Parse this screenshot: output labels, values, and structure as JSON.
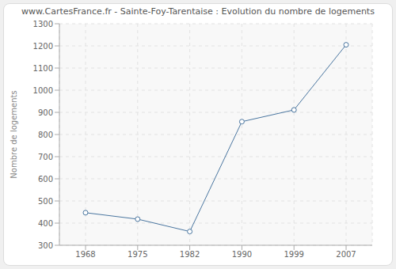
{
  "chart_data": {
    "type": "line",
    "title": "www.CartesFrance.fr - Sainte-Foy-Tarentaise : Evolution du nombre de logements",
    "y_label": "Nombre de logements",
    "categories": [
      "1968",
      "1975",
      "1982",
      "1990",
      "1999",
      "2007"
    ],
    "values": [
      447,
      418,
      362,
      858,
      911,
      1205
    ],
    "color": "#4a76a0",
    "marker": "circle",
    "ylim": [
      300,
      1300
    ],
    "yticks": [
      300,
      400,
      500,
      600,
      700,
      800,
      900,
      1000,
      1100,
      1200,
      1300
    ],
    "grid": true
  }
}
